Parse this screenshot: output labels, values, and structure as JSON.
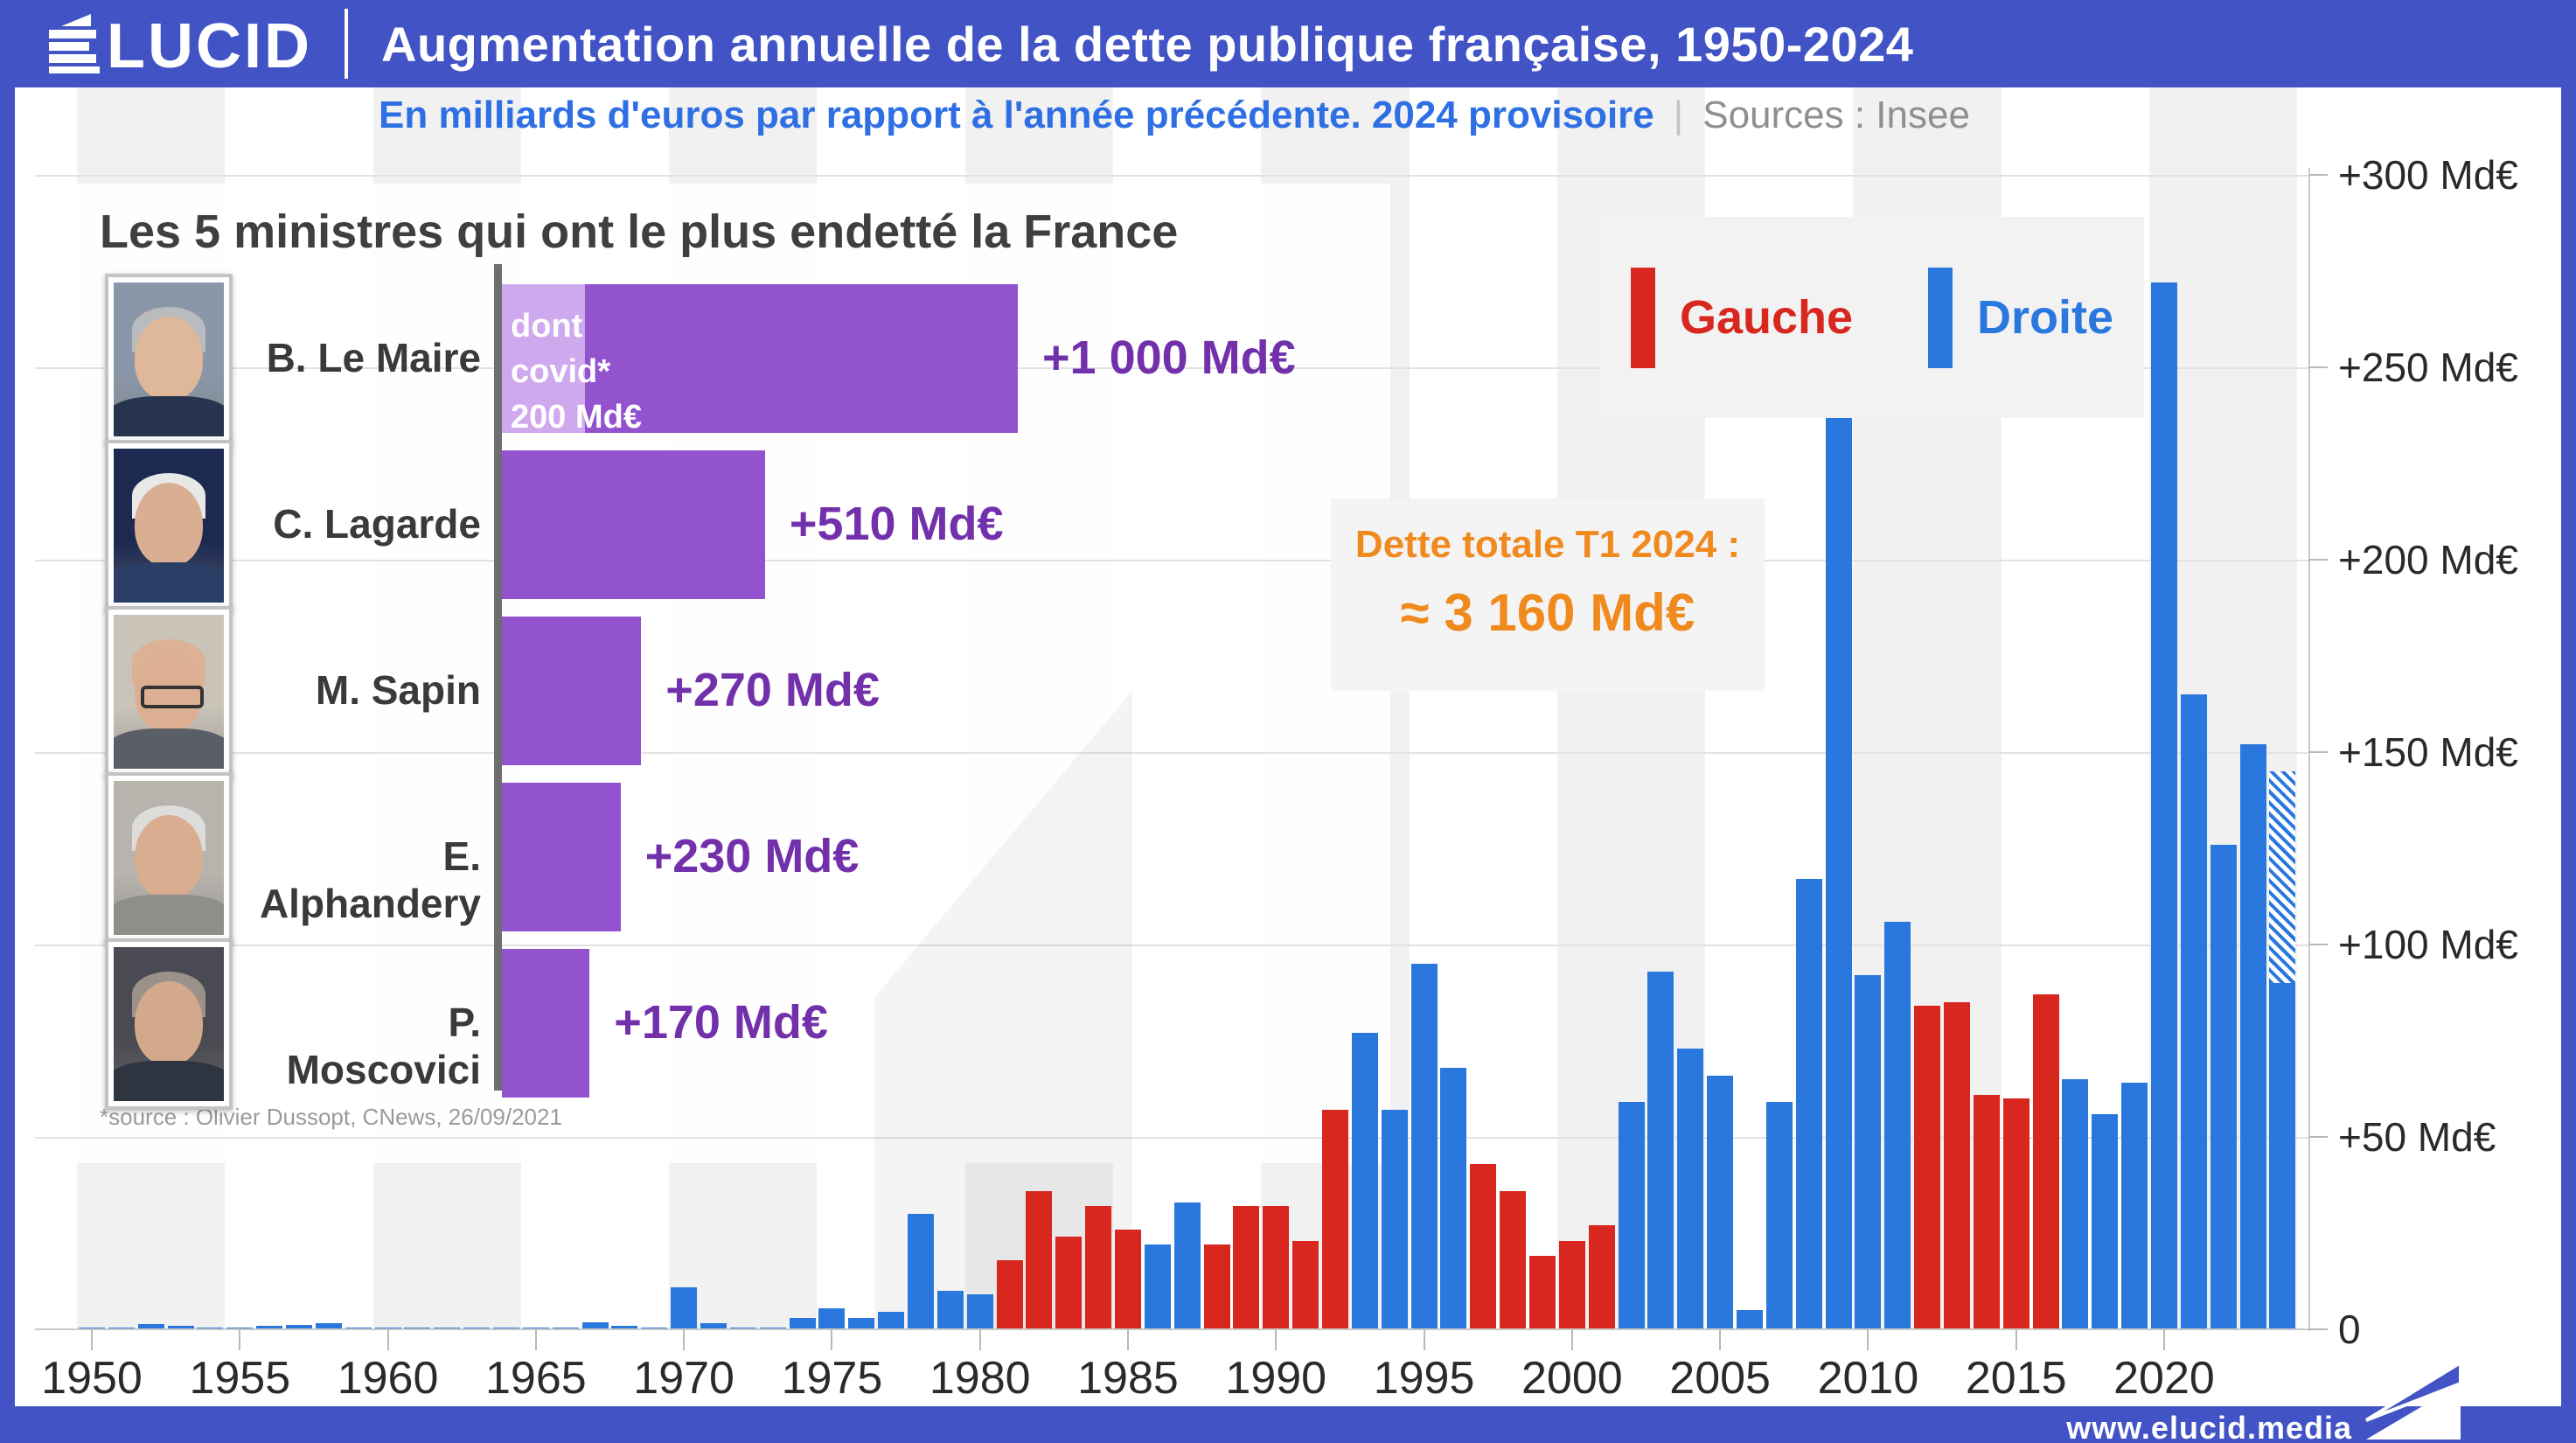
{
  "header": {
    "logo_text": "LUCID",
    "title": "Augmentation annuelle de la dette publique française, 1950-2024"
  },
  "subtitle": {
    "main": "En milliards d'euros par rapport à l'année précédente. 2024 provisoire",
    "separator": "|",
    "source": "Sources : Insee"
  },
  "inset": {
    "title": "Les 5 ministres qui ont le plus endetté la France",
    "covid_note": "dont\ncovid*\n200 Md€",
    "source_note": "*source : Olivier Dussopt, CNews, 26/09/2021",
    "ministers": [
      {
        "name": "B. Le Maire",
        "label": "+1 000 Md€",
        "value": 1000,
        "covid": 200,
        "photo": {
          "bg": "#8a97a8",
          "skin": "#dfb89a",
          "hair": "#b9bcbe",
          "suit": "#26344d",
          "glasses": false
        }
      },
      {
        "name": "C. Lagarde",
        "label": "+510 Md€",
        "value": 510,
        "photo": {
          "bg": "#1c2a52",
          "skin": "#d9ae93",
          "hair": "#e8e8e6",
          "suit": "#2b3f66",
          "glasses": false
        }
      },
      {
        "name": "M. Sapin",
        "label": "+270 Md€",
        "value": 270,
        "photo": {
          "bg": "#c9c3b8",
          "skin": "#dcae92",
          "hair": "#dcb296",
          "suit": "#5a5e66",
          "glasses": true
        }
      },
      {
        "name": "E. Alphandery",
        "label": "+230 Md€",
        "value": 230,
        "photo": {
          "bg": "#b7b4ad",
          "skin": "#d9ad90",
          "hair": "#dcdcda",
          "suit": "#8e8e8a",
          "glasses": false
        }
      },
      {
        "name": "P. Moscovici",
        "label": "+170 Md€",
        "value": 170,
        "photo": {
          "bg": "#4a4a52",
          "skin": "#d3a98c",
          "hair": "#9a9289",
          "suit": "#2e3440",
          "glasses": false
        }
      }
    ]
  },
  "legend": {
    "items": [
      {
        "label": "Gauche",
        "color": "#d8271e"
      },
      {
        "label": "Droite",
        "color": "#2a78dd"
      }
    ]
  },
  "annotation": {
    "line1": "Dette totale T1 2024 :",
    "line2": "≈ 3 160 Md€"
  },
  "footer": {
    "url": "www.elucid.media"
  },
  "chart_data": {
    "type": "bar",
    "title": "Augmentation annuelle de la dette publique française, 1950-2024",
    "xlabel": "",
    "ylabel": "Md€",
    "ylim": [
      0,
      300
    ],
    "grid": true,
    "legend_position": "top-right",
    "y_ticks": [
      "0",
      "+50 Md€",
      "+100 Md€",
      "+150 Md€",
      "+200 Md€",
      "+250 Md€",
      "+300 Md€"
    ],
    "x_ticks": [
      1950,
      1955,
      1960,
      1965,
      1970,
      1975,
      1980,
      1985,
      1990,
      1995,
      2000,
      2005,
      2010,
      2015,
      2020
    ],
    "side_colors": {
      "G": "#d8271e",
      "D": "#2a78dd"
    },
    "series": [
      {
        "year": 1950,
        "value": 0.3,
        "side": "D"
      },
      {
        "year": 1951,
        "value": 0.4,
        "side": "D"
      },
      {
        "year": 1952,
        "value": 1.4,
        "side": "D"
      },
      {
        "year": 1953,
        "value": 0.8,
        "side": "D"
      },
      {
        "year": 1954,
        "value": 0.2,
        "side": "D"
      },
      {
        "year": 1955,
        "value": 0.2,
        "side": "D"
      },
      {
        "year": 1956,
        "value": 1.0,
        "side": "D"
      },
      {
        "year": 1957,
        "value": 1.1,
        "side": "D"
      },
      {
        "year": 1958,
        "value": 1.7,
        "side": "D"
      },
      {
        "year": 1959,
        "value": 0.5,
        "side": "D"
      },
      {
        "year": 1960,
        "value": 0.3,
        "side": "D"
      },
      {
        "year": 1961,
        "value": 0.2,
        "side": "D"
      },
      {
        "year": 1962,
        "value": 0.2,
        "side": "D"
      },
      {
        "year": 1963,
        "value": 0.5,
        "side": "D"
      },
      {
        "year": 1964,
        "value": 0.2,
        "side": "D"
      },
      {
        "year": 1965,
        "value": 0.3,
        "side": "D"
      },
      {
        "year": 1966,
        "value": 0.4,
        "side": "D"
      },
      {
        "year": 1967,
        "value": 1.8,
        "side": "D"
      },
      {
        "year": 1968,
        "value": 1.0,
        "side": "D"
      },
      {
        "year": 1969,
        "value": 0.3,
        "side": "D"
      },
      {
        "year": 1970,
        "value": 11,
        "side": "D"
      },
      {
        "year": 1971,
        "value": 1.7,
        "side": "D"
      },
      {
        "year": 1972,
        "value": 0.4,
        "side": "D"
      },
      {
        "year": 1973,
        "value": 0.5,
        "side": "D"
      },
      {
        "year": 1974,
        "value": 3,
        "side": "D"
      },
      {
        "year": 1975,
        "value": 5.5,
        "side": "D"
      },
      {
        "year": 1976,
        "value": 3,
        "side": "D"
      },
      {
        "year": 1977,
        "value": 4.5,
        "side": "D"
      },
      {
        "year": 1978,
        "value": 30,
        "side": "D"
      },
      {
        "year": 1979,
        "value": 10,
        "side": "D"
      },
      {
        "year": 1980,
        "value": 9,
        "side": "D"
      },
      {
        "year": 1981,
        "value": 18,
        "side": "G"
      },
      {
        "year": 1982,
        "value": 36,
        "side": "G"
      },
      {
        "year": 1983,
        "value": 24,
        "side": "G"
      },
      {
        "year": 1984,
        "value": 32,
        "side": "G"
      },
      {
        "year": 1985,
        "value": 26,
        "side": "G"
      },
      {
        "year": 1986,
        "value": 22,
        "side": "D"
      },
      {
        "year": 1987,
        "value": 33,
        "side": "D"
      },
      {
        "year": 1988,
        "value": 22,
        "side": "G"
      },
      {
        "year": 1989,
        "value": 32,
        "side": "G"
      },
      {
        "year": 1990,
        "value": 32,
        "side": "G"
      },
      {
        "year": 1991,
        "value": 23,
        "side": "G"
      },
      {
        "year": 1992,
        "value": 57,
        "side": "G"
      },
      {
        "year": 1993,
        "value": 77,
        "side": "D"
      },
      {
        "year": 1994,
        "value": 57,
        "side": "D"
      },
      {
        "year": 1995,
        "value": 95,
        "side": "D"
      },
      {
        "year": 1996,
        "value": 68,
        "side": "D"
      },
      {
        "year": 1997,
        "value": 43,
        "side": "G"
      },
      {
        "year": 1998,
        "value": 36,
        "side": "G"
      },
      {
        "year": 1999,
        "value": 19,
        "side": "G"
      },
      {
        "year": 2000,
        "value": 23,
        "side": "G"
      },
      {
        "year": 2001,
        "value": 27,
        "side": "G"
      },
      {
        "year": 2002,
        "value": 59,
        "side": "D"
      },
      {
        "year": 2003,
        "value": 93,
        "side": "D"
      },
      {
        "year": 2004,
        "value": 73,
        "side": "D"
      },
      {
        "year": 2005,
        "value": 66,
        "side": "D"
      },
      {
        "year": 2006,
        "value": 5,
        "side": "D"
      },
      {
        "year": 2007,
        "value": 59,
        "side": "D"
      },
      {
        "year": 2008,
        "value": 117,
        "side": "D"
      },
      {
        "year": 2009,
        "value": 238,
        "side": "D"
      },
      {
        "year": 2010,
        "value": 92,
        "side": "D"
      },
      {
        "year": 2011,
        "value": 106,
        "side": "D"
      },
      {
        "year": 2012,
        "value": 84,
        "side": "G"
      },
      {
        "year": 2013,
        "value": 85,
        "side": "G"
      },
      {
        "year": 2014,
        "value": 61,
        "side": "G"
      },
      {
        "year": 2015,
        "value": 60,
        "side": "G"
      },
      {
        "year": 2016,
        "value": 87,
        "side": "G"
      },
      {
        "year": 2017,
        "value": 65,
        "side": "D"
      },
      {
        "year": 2018,
        "value": 56,
        "side": "D"
      },
      {
        "year": 2019,
        "value": 64,
        "side": "D"
      },
      {
        "year": 2020,
        "value": 272,
        "side": "D"
      },
      {
        "year": 2021,
        "value": 165,
        "side": "D"
      },
      {
        "year": 2022,
        "value": 126,
        "side": "D"
      },
      {
        "year": 2023,
        "value": 152,
        "side": "D"
      },
      {
        "year": 2024,
        "value": 145,
        "side": "D",
        "provisional": true,
        "solid": 90
      }
    ]
  }
}
